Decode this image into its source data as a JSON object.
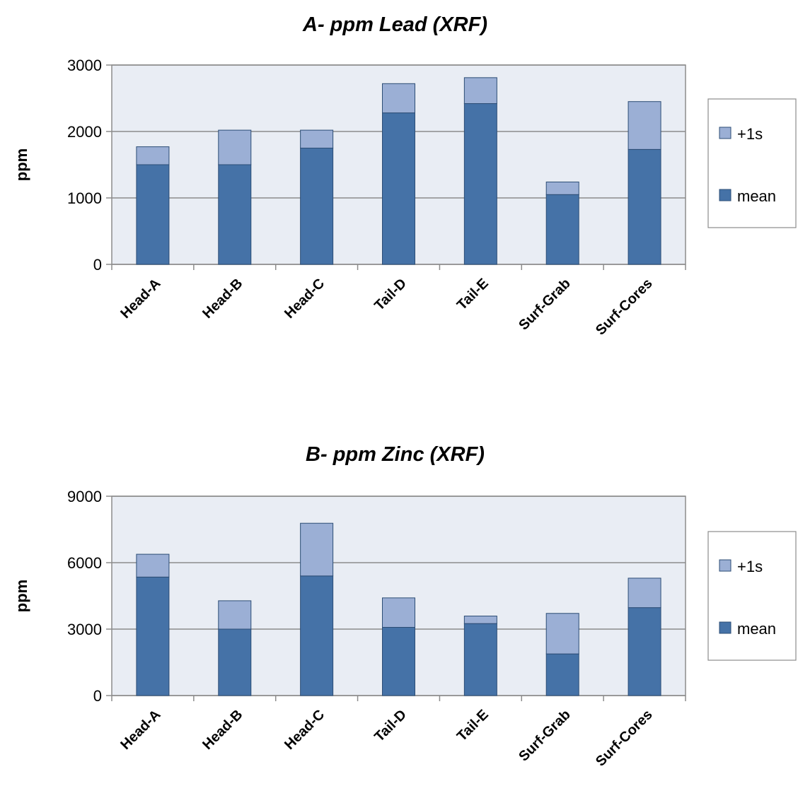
{
  "chart_data": [
    {
      "type": "bar",
      "stacked": true,
      "title": "A- ppm Lead (XRF)",
      "ylabel": "ppm",
      "ylim": [
        0,
        3000
      ],
      "yticks": [
        0,
        1000,
        2000,
        3000
      ],
      "categories": [
        "Head-A",
        "Head-B",
        "Head-C",
        "Tail-D",
        "Tail-E",
        "Surf-Grab",
        "Surf-Cores"
      ],
      "series": [
        {
          "name": "mean",
          "color": "#4572a7",
          "values": [
            1500,
            1500,
            1750,
            2280,
            2420,
            1050,
            1730
          ]
        },
        {
          "name": "+1s",
          "color": "#9bafd5",
          "values": [
            270,
            520,
            270,
            440,
            390,
            190,
            720
          ]
        }
      ],
      "legend": "right",
      "grid": true
    },
    {
      "type": "bar",
      "stacked": true,
      "title": "B- ppm Zinc (XRF)",
      "ylabel": "ppm",
      "ylim": [
        0,
        9000
      ],
      "yticks": [
        0,
        3000,
        6000,
        9000
      ],
      "categories": [
        "Head-A",
        "Head-B",
        "Head-C",
        "Tail-D",
        "Tail-E",
        "Surf-Grab",
        "Surf-Cores"
      ],
      "series": [
        {
          "name": "mean",
          "color": "#4572a7",
          "values": [
            5350,
            3000,
            5400,
            3080,
            3250,
            1880,
            3970
          ]
        },
        {
          "name": "+1s",
          "color": "#9bafd5",
          "values": [
            1030,
            1280,
            2380,
            1330,
            340,
            1830,
            1330
          ]
        }
      ],
      "legend": "right",
      "grid": true
    }
  ]
}
